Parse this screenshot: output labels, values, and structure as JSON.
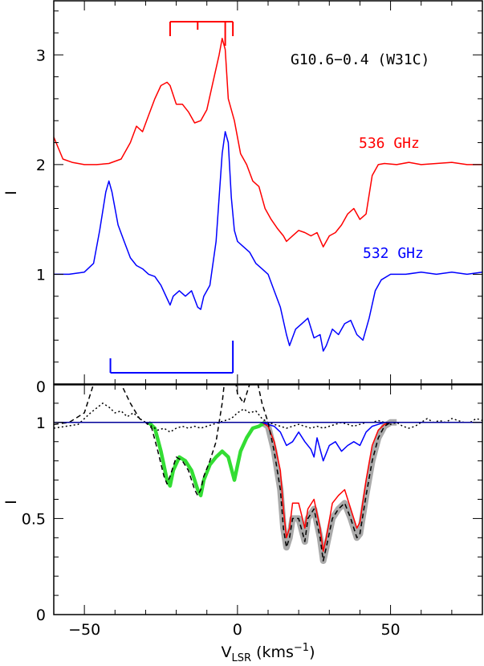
{
  "figure": {
    "title": "G10.6−0.4 (W31C)",
    "xlabel_main": "V",
    "xlabel_sub": "LSR",
    "xlabel_units": " (kms",
    "xlabel_exp": "−1",
    "xlabel_close": ")"
  },
  "colors": {
    "red": "#ff0000",
    "blue": "#0000ff",
    "green": "#33dd33",
    "gray": "#aaaaaa",
    "black": "#000000",
    "navy": "#000099"
  },
  "chart_data": [
    {
      "type": "line",
      "panel": "top",
      "ylabel": "I",
      "xlim": [
        -60,
        80
      ],
      "ylim": [
        0,
        3.5
      ],
      "x_ticks": [
        -50,
        0,
        50
      ],
      "x_tick_labels": [
        "−50",
        "0",
        "50"
      ],
      "y_ticks": [
        0,
        1,
        2,
        3
      ],
      "y_tick_labels": [
        "0",
        "1",
        "2",
        "3"
      ],
      "annotations": [
        {
          "text": "536 GHz",
          "color": "#ff0000"
        },
        {
          "text": "532 GHz",
          "color": "#0000ff"
        }
      ],
      "series": [
        {
          "name": "536 GHz",
          "color": "#ff0000",
          "x": [
            -60,
            -57,
            -54,
            -50,
            -46,
            -42,
            -38,
            -35,
            -33,
            -31,
            -29,
            -27,
            -25,
            -23,
            -22,
            -20,
            -18,
            -16,
            -14,
            -12,
            -10,
            -8,
            -6,
            -5,
            -4,
            -3,
            -1,
            1,
            3,
            5,
            7,
            9,
            11,
            13,
            15,
            16,
            18,
            20,
            22,
            24,
            26,
            28,
            30,
            32,
            34,
            36,
            38,
            40,
            42,
            44,
            46,
            48,
            52,
            56,
            60,
            65,
            70,
            75,
            80
          ],
          "y": [
            2.25,
            2.05,
            2.02,
            2.0,
            2.0,
            2.01,
            2.05,
            2.2,
            2.35,
            2.3,
            2.45,
            2.6,
            2.72,
            2.75,
            2.72,
            2.55,
            2.55,
            2.48,
            2.38,
            2.4,
            2.5,
            2.75,
            3.0,
            3.15,
            3.05,
            2.6,
            2.4,
            2.1,
            2.0,
            1.85,
            1.8,
            1.6,
            1.5,
            1.42,
            1.35,
            1.3,
            1.35,
            1.4,
            1.38,
            1.35,
            1.38,
            1.25,
            1.35,
            1.38,
            1.45,
            1.55,
            1.6,
            1.5,
            1.55,
            1.9,
            2.0,
            2.01,
            2.0,
            2.02,
            2.0,
            2.01,
            2.02,
            2.0,
            2.0
          ]
        },
        {
          "name": "532 GHz",
          "color": "#0000ff",
          "x": [
            -60,
            -55,
            -50,
            -47,
            -45,
            -43,
            -42,
            -41,
            -39,
            -37,
            -35,
            -33,
            -31,
            -29,
            -27,
            -25,
            -23,
            -22,
            -21,
            -19,
            -17,
            -15,
            -13,
            -12,
            -11,
            -9,
            -7,
            -6,
            -5,
            -4,
            -3,
            -2,
            -1,
            0,
            2,
            4,
            6,
            8,
            10,
            12,
            14,
            16,
            17,
            19,
            21,
            23,
            25,
            27,
            28,
            29,
            31,
            33,
            35,
            37,
            39,
            41,
            43,
            45,
            47,
            50,
            55,
            60,
            65,
            70,
            75,
            80
          ],
          "y": [
            1.0,
            1.0,
            1.02,
            1.1,
            1.4,
            1.75,
            1.85,
            1.75,
            1.45,
            1.3,
            1.15,
            1.08,
            1.05,
            1.0,
            0.98,
            0.9,
            0.78,
            0.72,
            0.8,
            0.85,
            0.8,
            0.85,
            0.7,
            0.68,
            0.8,
            0.9,
            1.3,
            1.7,
            2.1,
            2.3,
            2.2,
            1.7,
            1.4,
            1.3,
            1.25,
            1.2,
            1.1,
            1.05,
            1.0,
            0.85,
            0.7,
            0.45,
            0.35,
            0.5,
            0.55,
            0.6,
            0.42,
            0.45,
            0.3,
            0.35,
            0.5,
            0.45,
            0.55,
            0.58,
            0.45,
            0.4,
            0.6,
            0.85,
            0.95,
            1.0,
            1.0,
            1.02,
            1.0,
            1.02,
            1.0,
            1.02
          ]
        }
      ],
      "markers": [
        {
          "name": "red hfs bracket",
          "color": "#ff0000",
          "x_start": -22,
          "x_end": -1.5,
          "ticks": [
            -22,
            -13,
            -4,
            -1.5
          ]
        },
        {
          "name": "blue hfs bracket",
          "color": "#0000ff",
          "x_start": -41.5,
          "x_end": -1.5,
          "ticks": [
            -41.5,
            -1.5
          ]
        }
      ]
    },
    {
      "type": "line",
      "panel": "bottom",
      "ylabel": "I",
      "xlim": [
        -60,
        80
      ],
      "ylim": [
        0,
        1.2
      ],
      "x_ticks": [
        -50,
        0,
        50
      ],
      "x_tick_labels": [
        "−50",
        "0",
        "50"
      ],
      "y_ticks": [
        0,
        0.5,
        1
      ],
      "y_tick_labels": [
        "0",
        "0.5",
        "1"
      ],
      "series": [
        {
          "name": "gray fit",
          "color": "#aaaaaa",
          "x": [
            8,
            10,
            12,
            14,
            15,
            16,
            17,
            18,
            20,
            22,
            23,
            25,
            27,
            28,
            29,
            31,
            33,
            35,
            37,
            39,
            40,
            42,
            44,
            46,
            48,
            50,
            52
          ],
          "y": [
            1.0,
            0.98,
            0.85,
            0.65,
            0.45,
            0.35,
            0.4,
            0.5,
            0.5,
            0.38,
            0.5,
            0.55,
            0.4,
            0.28,
            0.35,
            0.5,
            0.55,
            0.58,
            0.5,
            0.4,
            0.42,
            0.62,
            0.8,
            0.92,
            0.98,
            1.0,
            1.0
          ]
        },
        {
          "name": "green fit",
          "color": "#33dd33",
          "x": [
            -29,
            -27,
            -25,
            -23,
            -22,
            -21,
            -19,
            -17,
            -15,
            -13,
            -12,
            -11,
            -9,
            -7,
            -5,
            -3,
            -1,
            1,
            3,
            5,
            7,
            9
          ],
          "y": [
            1.0,
            0.97,
            0.85,
            0.7,
            0.67,
            0.75,
            0.82,
            0.8,
            0.75,
            0.65,
            0.62,
            0.7,
            0.78,
            0.82,
            0.85,
            0.82,
            0.7,
            0.85,
            0.92,
            0.97,
            0.98,
            1.0
          ]
        },
        {
          "name": "green baseline",
          "color": "#33dd33",
          "x": [
            -60,
            80
          ],
          "y": [
            1.0,
            1.0
          ]
        },
        {
          "name": "red",
          "color": "#ff0000",
          "x": [
            8,
            10,
            12,
            14,
            15,
            16,
            17,
            18,
            20,
            22,
            23,
            25,
            27,
            28,
            29,
            31,
            33,
            35,
            37,
            39,
            40,
            42,
            44,
            46,
            48,
            50,
            52
          ],
          "y": [
            1.0,
            0.98,
            0.9,
            0.75,
            0.55,
            0.4,
            0.45,
            0.58,
            0.58,
            0.45,
            0.55,
            0.6,
            0.45,
            0.33,
            0.4,
            0.58,
            0.62,
            0.65,
            0.55,
            0.45,
            0.48,
            0.7,
            0.88,
            0.96,
            0.99,
            1.0,
            1.0
          ]
        },
        {
          "name": "blue",
          "color": "#0000ff",
          "x": [
            -60,
            8,
            12,
            14,
            16,
            18,
            20,
            22,
            24,
            25,
            26,
            28,
            30,
            32,
            34,
            36,
            38,
            40,
            42,
            44,
            46,
            48,
            50,
            55,
            60,
            65,
            70,
            75,
            80
          ],
          "y": [
            1.0,
            1.0,
            0.98,
            0.95,
            0.88,
            0.9,
            0.95,
            0.9,
            0.86,
            0.82,
            0.92,
            0.8,
            0.88,
            0.9,
            0.85,
            0.88,
            0.9,
            0.88,
            0.95,
            0.98,
            0.99,
            1.0,
            1.0,
            1.0,
            1.0,
            1.0,
            1.0,
            1.0,
            1.0
          ]
        },
        {
          "name": "dashed profile",
          "color": "#000000",
          "dashed": true,
          "x": [
            -60,
            -55,
            -50,
            -47,
            -45,
            -42,
            -38,
            -35,
            -32,
            -30,
            -28,
            -26,
            -24,
            -23,
            -22,
            -20,
            -18,
            -16,
            -14,
            -13,
            -12,
            -11,
            -9,
            -7,
            -5,
            -4,
            -3,
            -2,
            -1,
            0,
            2,
            4,
            6,
            8,
            10,
            12,
            14,
            15,
            16,
            17,
            18,
            20,
            22,
            23,
            25,
            27,
            28,
            29,
            31,
            33,
            35,
            37,
            39,
            40,
            42,
            44,
            46,
            48,
            50,
            52
          ],
          "y": [
            0.99,
            1.0,
            1.05,
            1.2,
            1.3,
            1.3,
            1.2,
            1.1,
            1.02,
            1.0,
            0.97,
            0.85,
            0.72,
            0.68,
            0.72,
            0.82,
            0.8,
            0.75,
            0.65,
            0.62,
            0.65,
            0.72,
            0.8,
            0.9,
            1.1,
            1.25,
            1.3,
            1.3,
            1.25,
            1.15,
            1.1,
            1.2,
            1.25,
            1.1,
            1.0,
            0.85,
            0.65,
            0.45,
            0.35,
            0.4,
            0.5,
            0.5,
            0.38,
            0.5,
            0.55,
            0.4,
            0.28,
            0.35,
            0.5,
            0.55,
            0.58,
            0.5,
            0.4,
            0.42,
            0.62,
            0.8,
            0.92,
            0.98,
            1.0,
            1.0
          ]
        },
        {
          "name": "dotted profile",
          "color": "#000000",
          "dotted": true,
          "x": [
            -60,
            -56,
            -52,
            -48,
            -44,
            -42,
            -40,
            -38,
            -36,
            -34,
            -32,
            -30,
            -28,
            -26,
            -24,
            -22,
            -20,
            -18,
            -16,
            -14,
            -12,
            -10,
            -8,
            -6,
            -4,
            -2,
            0,
            2,
            4,
            6,
            8,
            10,
            12,
            14,
            16,
            18,
            20,
            22,
            24,
            26,
            28,
            30,
            32,
            34,
            36,
            38,
            40,
            42,
            44,
            46,
            48,
            50,
            52,
            54,
            56,
            58,
            60,
            62,
            64,
            66,
            68,
            70,
            72,
            74,
            76,
            78,
            80
          ],
          "y": [
            0.97,
            0.98,
            0.99,
            1.05,
            1.1,
            1.08,
            1.05,
            1.06,
            1.03,
            1.05,
            1.02,
            1.0,
            0.98,
            0.96,
            0.97,
            0.95,
            0.97,
            0.98,
            0.97,
            0.98,
            0.97,
            0.98,
            0.99,
            1.0,
            1.01,
            1.02,
            1.05,
            1.07,
            1.05,
            1.06,
            1.02,
            1.0,
            0.99,
            0.98,
            0.97,
            0.98,
            0.99,
            0.98,
            0.97,
            0.98,
            0.97,
            0.98,
            0.99,
            1.0,
            0.99,
            0.98,
            0.99,
            1.0,
            1.0,
            1.01,
            1.0,
            0.99,
            1.0,
            0.98,
            0.97,
            0.98,
            1.0,
            1.02,
            1.0,
            1.01,
            1.0,
            1.02,
            1.01,
            1.0,
            1.0,
            1.02,
            1.01
          ]
        },
        {
          "name": "navy baseline",
          "color": "#000099",
          "x": [
            -60,
            80
          ],
          "y": [
            1.0,
            1.0
          ]
        }
      ]
    }
  ]
}
